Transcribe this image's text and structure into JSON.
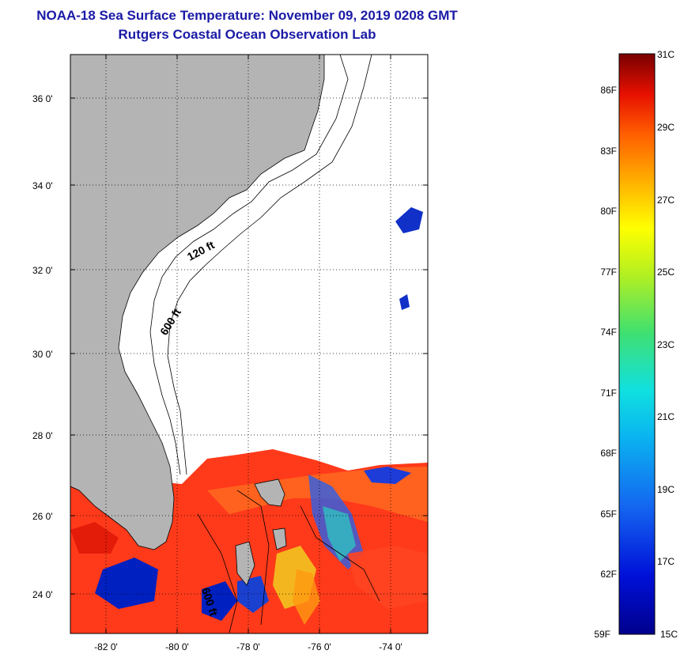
{
  "title": {
    "line1": "NOAA-18 Sea Surface Temperature:  November 09, 2019 0208 GMT",
    "line2": "Rutgers Coastal Ocean Observation Lab"
  },
  "colors": {
    "title": "#1a1aa6",
    "land": "#b4b4b4",
    "no_data": "#ffffff",
    "warm_water": "#ff3a1a",
    "cool_water": "#1030c8"
  },
  "map": {
    "lon_range": [
      -83,
      -73
    ],
    "lat_range": [
      23,
      37
    ],
    "lat_ticks": [
      "24 0'",
      "26 0'",
      "28 0'",
      "30 0'",
      "32 0'",
      "34 0'",
      "36 0'"
    ],
    "lon_ticks": [
      "-82 0'",
      "-80 0'",
      "-78 0'",
      "-76 0'",
      "-74 0'"
    ],
    "contour_labels": [
      "120 ft",
      "600 ft",
      "600 ft"
    ],
    "grid": "dotted"
  },
  "colorbar": {
    "celsius_labels": [
      "31C",
      "29C",
      "27C",
      "25C",
      "23C",
      "21C",
      "19C",
      "17C",
      "15C"
    ],
    "fahrenheit_labels": [
      "86F",
      "83F",
      "80F",
      "77F",
      "74F",
      "71F",
      "68F",
      "65F",
      "62F",
      "59F"
    ],
    "range_c": [
      15,
      31
    ],
    "range_f": [
      59,
      87.8
    ]
  }
}
